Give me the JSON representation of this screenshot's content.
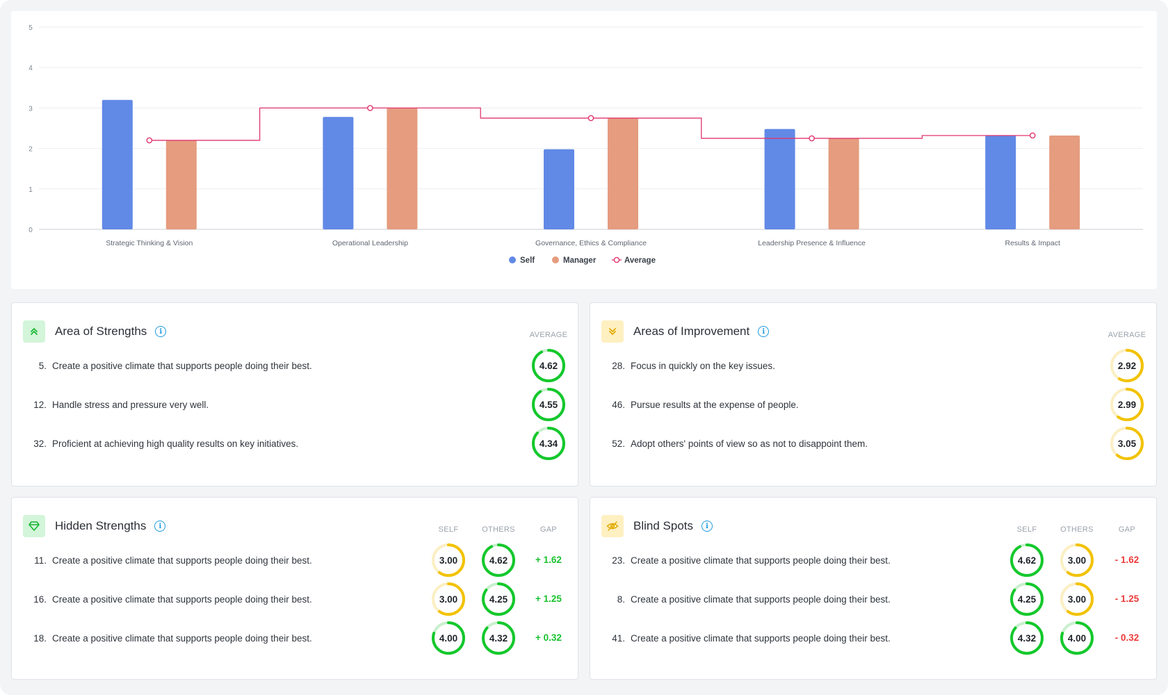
{
  "chart_data": {
    "type": "bar",
    "categories": [
      "Strategic Thinking & Vision",
      "Operational Leadership",
      "Governance, Ethics & Compliance",
      "Leadership Presence & Influence",
      "Results & Impact"
    ],
    "series": [
      {
        "name": "Self",
        "type": "bar",
        "color": "#6189e6",
        "values": [
          3.2,
          2.78,
          1.98,
          2.48,
          2.32
        ]
      },
      {
        "name": "Manager",
        "type": "bar",
        "color": "#e59c7f",
        "values": [
          2.2,
          3.0,
          2.75,
          2.25,
          2.32
        ]
      },
      {
        "name": "Average",
        "type": "step-line",
        "color": "#e0356d",
        "values": [
          2.2,
          3.0,
          2.75,
          2.25,
          2.32
        ]
      }
    ],
    "ylim": [
      0,
      5
    ],
    "yticks": [
      "0",
      "1",
      "2",
      "3",
      "4",
      "5"
    ],
    "grid": true,
    "legend_position": "bottom-center"
  },
  "strengths": {
    "title": "Area of Strengths",
    "icon": "chevrons-up-icon",
    "avg_label": "AVERAGE",
    "items": [
      {
        "num": "5.",
        "text": "Create a positive climate that supports people doing their best.",
        "value": "4.62",
        "level": 0.924
      },
      {
        "num": "12.",
        "text": "Handle stress and pressure very well.",
        "value": "4.55",
        "level": 0.91
      },
      {
        "num": "32.",
        "text": "Proficient at achieving high quality results on key initiatives.",
        "value": "4.34",
        "level": 0.868
      }
    ]
  },
  "improvement": {
    "title": "Areas of Improvement",
    "icon": "chevrons-down-icon",
    "avg_label": "AVERAGE",
    "items": [
      {
        "num": "28.",
        "text": "Focus in quickly on the key issues.",
        "value": "2.92",
        "level": 0.584
      },
      {
        "num": "46.",
        "text": "Pursue results at the expense of people.",
        "value": "2.99",
        "level": 0.598
      },
      {
        "num": "52.",
        "text": "Adopt others' points of view so as not to disappoint them.",
        "value": "3.05",
        "level": 0.61
      }
    ]
  },
  "hidden": {
    "title": "Hidden Strengths",
    "icon": "gem-icon",
    "self_label": "SELF",
    "others_label": "OTHERS",
    "gap_label": "GAP",
    "items": [
      {
        "num": "11.",
        "text": "Create a positive climate that supports people doing their best.",
        "self": "3.00",
        "self_level": 0.6,
        "others": "4.62",
        "others_level": 0.924,
        "gap": "+ 1.62"
      },
      {
        "num": "16.",
        "text": "Create a positive climate that supports people doing their best.",
        "self": "3.00",
        "self_level": 0.6,
        "others": "4.25",
        "others_level": 0.85,
        "gap": "+ 1.25"
      },
      {
        "num": "18.",
        "text": "Create a positive climate that supports people doing their best.",
        "self": "4.00",
        "self_level": 0.8,
        "others": "4.32",
        "others_level": 0.864,
        "gap": "+ 0.32"
      }
    ]
  },
  "blind": {
    "title": "Blind Spots",
    "icon": "eye-off-icon",
    "self_label": "SELF",
    "others_label": "OTHERS",
    "gap_label": "GAP",
    "items": [
      {
        "num": "23.",
        "text": "Create a positive climate that supports people doing their best.",
        "self": "4.62",
        "self_level": 0.924,
        "others": "3.00",
        "others_level": 0.6,
        "gap": "- 1.62"
      },
      {
        "num": "8.",
        "text": "Create a positive climate that supports people doing their best.",
        "self": "4.25",
        "self_level": 0.85,
        "others": "3.00",
        "others_level": 0.6,
        "gap": "- 1.25"
      },
      {
        "num": "41.",
        "text": "Create a positive climate that supports people doing their best.",
        "self": "4.32",
        "self_level": 0.864,
        "others": "4.00",
        "others_level": 0.8,
        "gap": "- 0.32"
      }
    ]
  },
  "colors": {
    "green": "#14c82c",
    "green_track": "#c9f0ce",
    "yellow": "#f2c200",
    "yellow_track": "#fbefc4"
  }
}
